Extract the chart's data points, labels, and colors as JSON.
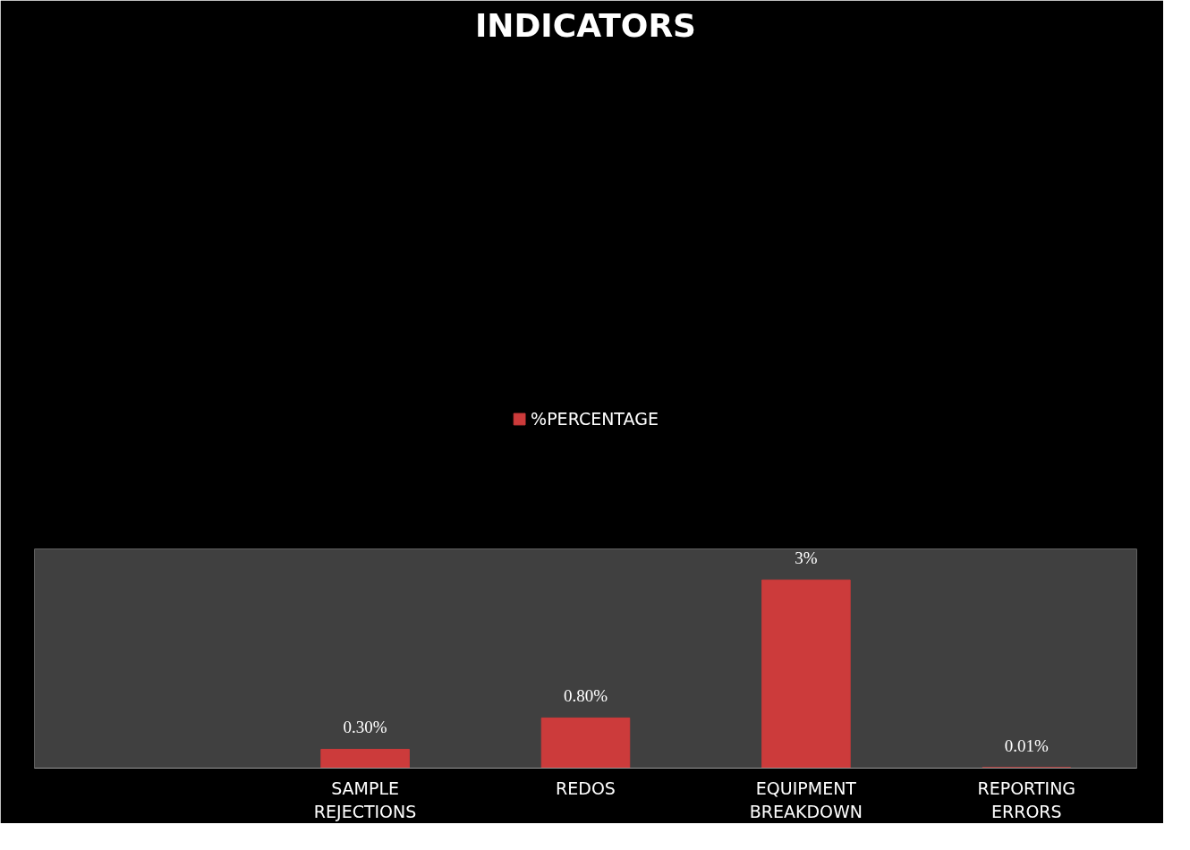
{
  "chart_data": {
    "type": "bar",
    "title": "INDICATORS",
    "categories": [
      null,
      "SAMPLE REJECTIONS",
      "REDOS",
      "EQUIPMENT BREAKDOWN",
      "REPORTING ERRORS"
    ],
    "series": [
      {
        "name": "%PERCENTAGE",
        "color": "#cc3b3b",
        "values": [
          null,
          0.3,
          0.8,
          3,
          0.01
        ],
        "value_labels": [
          null,
          "0.30%",
          "0.80%",
          "3%",
          "0.01%"
        ]
      }
    ],
    "legend": "top",
    "grid": false,
    "tick_labels": "x"
  }
}
